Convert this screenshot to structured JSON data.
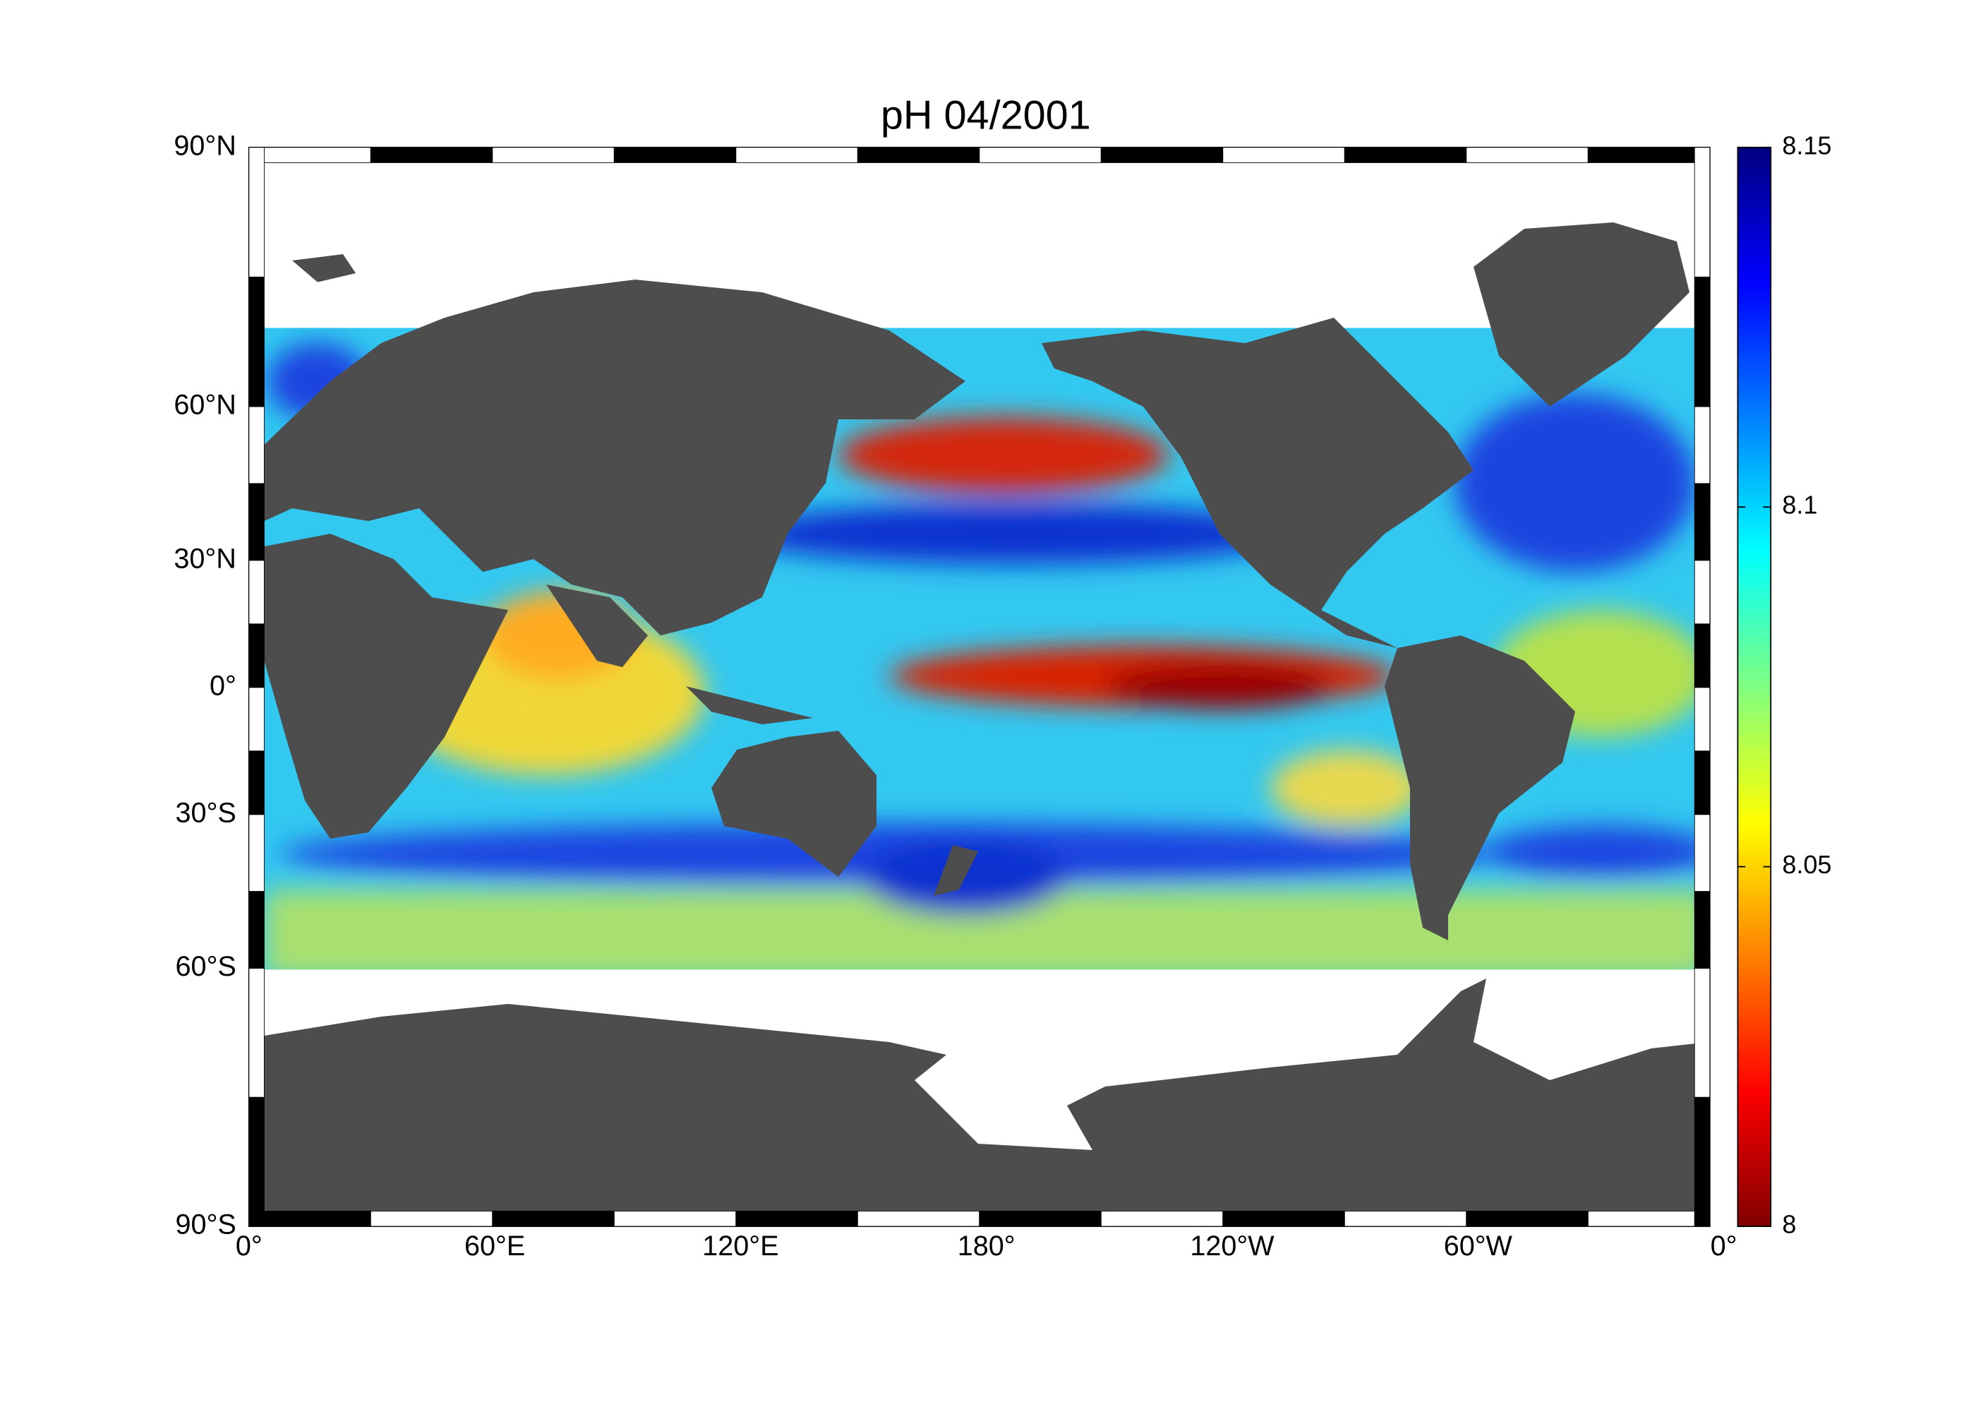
{
  "title": "pH  04/2001",
  "lat_labels": [
    "90°N",
    "60°N",
    "30°N",
    "0°",
    "30°S",
    "60°S",
    "90°S"
  ],
  "lon_labels": [
    "0°",
    "60°E",
    "120°E",
    "180°",
    "120°W",
    "60°W",
    "0°"
  ],
  "colorbar": {
    "lim": [
      8,
      8.15
    ],
    "ticks": [
      8,
      8.05,
      8.1,
      8.15
    ]
  }
}
